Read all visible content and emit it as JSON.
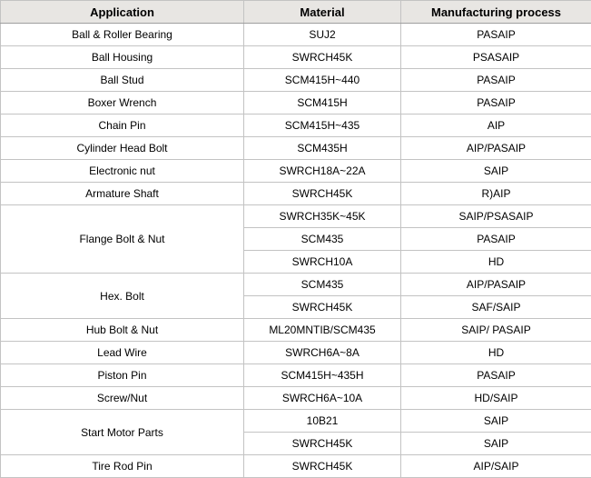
{
  "chart_data": {
    "type": "table",
    "title": "",
    "columns": [
      "Application",
      "Material",
      "Manufacturing process"
    ],
    "groups": [
      {
        "application": "Ball & Roller Bearing",
        "entries": [
          {
            "material": "SUJ2",
            "process": "PASAIP"
          }
        ]
      },
      {
        "application": "Ball Housing",
        "entries": [
          {
            "material": "SWRCH45K",
            "process": "PSASAIP"
          }
        ]
      },
      {
        "application": "Ball Stud",
        "entries": [
          {
            "material": "SCM415H~440",
            "process": "PASAIP"
          }
        ]
      },
      {
        "application": "Boxer Wrench",
        "entries": [
          {
            "material": "SCM415H",
            "process": "PASAIP"
          }
        ]
      },
      {
        "application": "Chain Pin",
        "entries": [
          {
            "material": "SCM415H~435",
            "process": "AIP"
          }
        ]
      },
      {
        "application": "Cylinder Head Bolt",
        "entries": [
          {
            "material": "SCM435H",
            "process": "AIP/PASAIP"
          }
        ]
      },
      {
        "application": "Electronic nut",
        "entries": [
          {
            "material": "SWRCH18A~22A",
            "process": "SAIP"
          }
        ]
      },
      {
        "application": "Armature Shaft",
        "entries": [
          {
            "material": "SWRCH45K",
            "process": "R)AIP"
          }
        ]
      },
      {
        "application": "Flange Bolt & Nut",
        "entries": [
          {
            "material": "SWRCH35K~45K",
            "process": "SAIP/PSASAIP"
          },
          {
            "material": "SCM435",
            "process": "PASAIP"
          },
          {
            "material": "SWRCH10A",
            "process": "HD"
          }
        ]
      },
      {
        "application": "Hex. Bolt",
        "entries": [
          {
            "material": "SCM435",
            "process": "AIP/PASAIP"
          },
          {
            "material": "SWRCH45K",
            "process": "SAF/SAIP"
          }
        ]
      },
      {
        "application": "Hub Bolt & Nut",
        "entries": [
          {
            "material": "ML20MNTIB/SCM435",
            "process": "SAIP/ PASAIP"
          }
        ]
      },
      {
        "application": "Lead Wire",
        "entries": [
          {
            "material": "SWRCH6A~8A",
            "process": "HD"
          }
        ]
      },
      {
        "application": "Piston Pin",
        "entries": [
          {
            "material": "SCM415H~435H",
            "process": "PASAIP"
          }
        ]
      },
      {
        "application": "Screw/Nut",
        "entries": [
          {
            "material": "SWRCH6A~10A",
            "process": "HD/SAIP"
          }
        ]
      },
      {
        "application": "Start Motor Parts",
        "entries": [
          {
            "material": "10B21",
            "process": "SAIP"
          },
          {
            "material": "SWRCH45K",
            "process": "SAIP"
          }
        ]
      },
      {
        "application": "Tire Rod Pin",
        "entries": [
          {
            "material": "SWRCH45K",
            "process": "AIP/SAIP"
          }
        ]
      }
    ]
  },
  "colors": {
    "header_bg": "#e8e6e3",
    "border": "#c3c3c3",
    "header_border": "#9f9f9f",
    "text": "#000000"
  }
}
